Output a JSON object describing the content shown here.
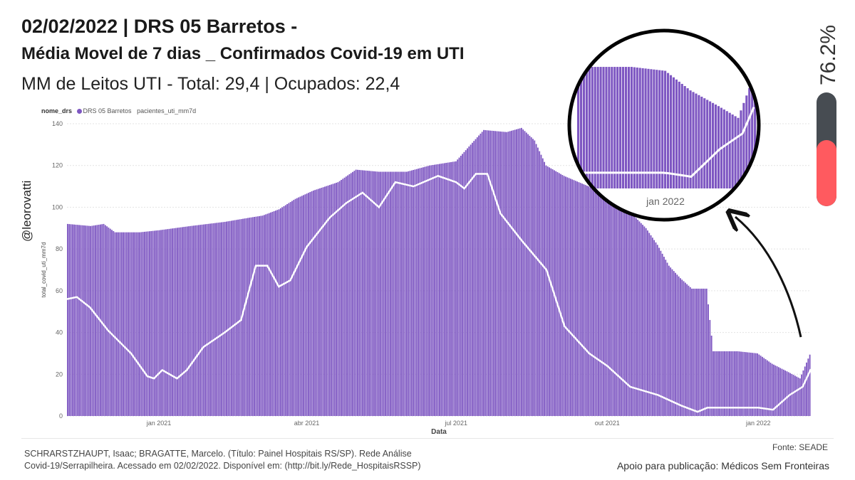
{
  "header": {
    "title_line1": "02/02/2022 | DRS 05 Barretos -",
    "title_line2": "Média Movel de 7 dias _ Confirmados Covid-19 em UTI",
    "subtitle": "MM de Leitos UTI - Total: 29,4 | Ocupados: 22,4"
  },
  "side": {
    "handle": "@leorovatti"
  },
  "gauge": {
    "percent_label": "76.2%",
    "percent_value": 76.2,
    "fill_color": "#ff5a5f",
    "track_color": "#474c52"
  },
  "footer": {
    "citation": "SCHRARSTZHAUPT, Isaac; BRAGATTE, Marcelo. (Título: Painel Hospitais RS/SP). Rede Análise Covid-19/Serrapilheira. Acessado em 02/02/2022. Disponível em: (http://bit.ly/Rede_HospitaisRSSP)",
    "source": "Fonte: SEADE",
    "support": "Apoio para publicação: Médicos Sem Fronteiras"
  },
  "legend": {
    "title": "nome_drs",
    "entries": [
      "DRS 05 Barretos",
      "pacientes_uti_mm7d"
    ]
  },
  "zoom": {
    "label": "jan 2022"
  },
  "chart_data": {
    "type": "bar",
    "xlabel": "Data",
    "ylabel": "total_covid_uti_mm7d",
    "ylim": [
      0,
      140
    ],
    "yticks": [
      0,
      20,
      40,
      60,
      80,
      100,
      120,
      140
    ],
    "grid": true,
    "x_range": [
      "2020-11-06",
      "2022-02-02"
    ],
    "x_ticks": [
      {
        "date": "2021-01-01",
        "label": "jan 2021"
      },
      {
        "date": "2021-04-01",
        "label": "abr 2021"
      },
      {
        "date": "2021-07-01",
        "label": "jul 2021"
      },
      {
        "date": "2021-10-01",
        "label": "out 2021"
      },
      {
        "date": "2022-01-01",
        "label": "jan 2022"
      }
    ],
    "bar_color": "#7e57c2",
    "line_color": "#ffffff",
    "series": [
      {
        "name": "DRS 05 Barretos",
        "mark": "bar",
        "points": [
          [
            "2020-11-06",
            92
          ],
          [
            "2020-11-20",
            91
          ],
          [
            "2020-11-28",
            92
          ],
          [
            "2020-12-05",
            88
          ],
          [
            "2020-12-20",
            88
          ],
          [
            "2021-01-01",
            89
          ],
          [
            "2021-01-20",
            91
          ],
          [
            "2021-02-10",
            93
          ],
          [
            "2021-02-25",
            95
          ],
          [
            "2021-03-05",
            96
          ],
          [
            "2021-03-15",
            99
          ],
          [
            "2021-03-25",
            104
          ],
          [
            "2021-04-05",
            108
          ],
          [
            "2021-04-20",
            112
          ],
          [
            "2021-05-01",
            118
          ],
          [
            "2021-05-15",
            117
          ],
          [
            "2021-06-01",
            117
          ],
          [
            "2021-06-15",
            120
          ],
          [
            "2021-07-01",
            122
          ],
          [
            "2021-07-10",
            130
          ],
          [
            "2021-07-18",
            137
          ],
          [
            "2021-08-01",
            136
          ],
          [
            "2021-08-10",
            138
          ],
          [
            "2021-08-18",
            132
          ],
          [
            "2021-08-25",
            120
          ],
          [
            "2021-09-05",
            115
          ],
          [
            "2021-09-20",
            110
          ],
          [
            "2021-10-01",
            105
          ],
          [
            "2021-10-15",
            98
          ],
          [
            "2021-10-25",
            90
          ],
          [
            "2021-11-01",
            82
          ],
          [
            "2021-11-08",
            72
          ],
          [
            "2021-11-15",
            66
          ],
          [
            "2021-11-22",
            61
          ],
          [
            "2021-12-01",
            61
          ],
          [
            "2021-12-05",
            31
          ],
          [
            "2021-12-20",
            31
          ],
          [
            "2022-01-01",
            30
          ],
          [
            "2022-01-10",
            25
          ],
          [
            "2022-01-20",
            21
          ],
          [
            "2022-01-27",
            18
          ],
          [
            "2022-02-02",
            29.4
          ]
        ]
      },
      {
        "name": "pacientes_uti_mm7d",
        "mark": "line",
        "points": [
          [
            "2020-11-06",
            56
          ],
          [
            "2020-11-12",
            57
          ],
          [
            "2020-11-20",
            52
          ],
          [
            "2020-12-01",
            41
          ],
          [
            "2020-12-15",
            30
          ],
          [
            "2020-12-25",
            19
          ],
          [
            "2020-12-29",
            18
          ],
          [
            "2021-01-03",
            22
          ],
          [
            "2021-01-12",
            18
          ],
          [
            "2021-01-18",
            22
          ],
          [
            "2021-01-28",
            33
          ],
          [
            "2021-02-10",
            40
          ],
          [
            "2021-02-20",
            46
          ],
          [
            "2021-03-01",
            72
          ],
          [
            "2021-03-08",
            72
          ],
          [
            "2021-03-15",
            62
          ],
          [
            "2021-03-22",
            65
          ],
          [
            "2021-04-01",
            81
          ],
          [
            "2021-04-15",
            95
          ],
          [
            "2021-04-25",
            102
          ],
          [
            "2021-05-05",
            107
          ],
          [
            "2021-05-15",
            100
          ],
          [
            "2021-05-25",
            112
          ],
          [
            "2021-06-05",
            110
          ],
          [
            "2021-06-20",
            115
          ],
          [
            "2021-07-01",
            112
          ],
          [
            "2021-07-06",
            109
          ],
          [
            "2021-07-13",
            116
          ],
          [
            "2021-07-20",
            116
          ],
          [
            "2021-07-28",
            97
          ],
          [
            "2021-08-10",
            84
          ],
          [
            "2021-08-25",
            70
          ],
          [
            "2021-09-05",
            43
          ],
          [
            "2021-09-20",
            30
          ],
          [
            "2021-10-01",
            24
          ],
          [
            "2021-10-15",
            14
          ],
          [
            "2021-11-01",
            10
          ],
          [
            "2021-11-15",
            5
          ],
          [
            "2021-11-25",
            2
          ],
          [
            "2021-12-01",
            4
          ],
          [
            "2021-12-15",
            4
          ],
          [
            "2022-01-01",
            4
          ],
          [
            "2022-01-10",
            3
          ],
          [
            "2022-01-20",
            10
          ],
          [
            "2022-01-28",
            14
          ],
          [
            "2022-02-02",
            22.4
          ]
        ]
      }
    ]
  }
}
